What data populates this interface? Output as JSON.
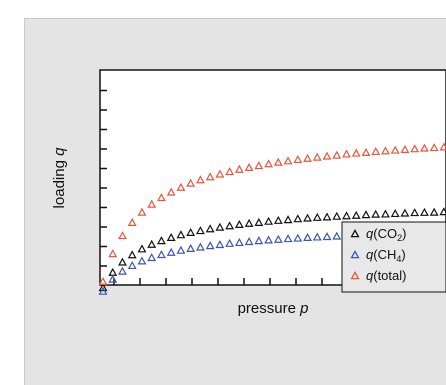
{
  "chart_data": {
    "type": "scatter",
    "xlabel": {
      "word": "pressure",
      "symbol": "p"
    },
    "ylabel": {
      "word": "loading",
      "symbol": "q"
    },
    "x": [
      0,
      0.02,
      0.04,
      0.06,
      0.08,
      0.1,
      0.12,
      0.14,
      0.16,
      0.18,
      0.2,
      0.22,
      0.24,
      0.26,
      0.28,
      0.3,
      0.32,
      0.34,
      0.36,
      0.38,
      0.4,
      0.42,
      0.44,
      0.46,
      0.48,
      0.5,
      0.52,
      0.54,
      0.56,
      0.58,
      0.6,
      0.62,
      0.64,
      0.66,
      0.68,
      0.7,
      0.72,
      0.74,
      0.76,
      0.78,
      0.8,
      0.82,
      0.84,
      0.86,
      0.88,
      0.9,
      0.92,
      0.94,
      0.96,
      0.98,
      1
    ],
    "xlim": [
      0,
      1
    ],
    "ylim": [
      0,
      1
    ],
    "grid": false,
    "legend_position": "lower-right",
    "series": [
      {
        "name": "q(CO2)",
        "label_main": "q(CO",
        "label_sub": "2",
        "label_end": ")",
        "color": "#111111",
        "values": [
          0.044,
          0.111,
          0.156,
          0.188,
          0.214,
          0.234,
          0.25,
          0.264,
          0.276,
          0.286,
          0.294,
          0.302,
          0.309,
          0.315,
          0.321,
          0.326,
          0.33,
          0.335,
          0.339,
          0.342,
          0.346,
          0.349,
          0.352,
          0.354,
          0.357,
          0.359,
          0.361,
          0.364,
          0.366,
          0.367,
          0.369,
          0.371,
          0.373,
          0.374,
          0.375,
          0.377,
          0.378,
          0.379,
          0.381,
          0.382,
          0.383,
          0.384,
          0.385,
          0.386,
          0.387,
          0.388,
          0.389,
          0.39,
          0.39,
          0.391,
          0.392
        ]
      },
      {
        "name": "q(CH4)",
        "label_main": "q(CH",
        "label_sub": "4",
        "label_end": ")",
        "color": "#3a55b8",
        "values": [
          0.028,
          0.081,
          0.116,
          0.141,
          0.161,
          0.176,
          0.189,
          0.199,
          0.208,
          0.216,
          0.222,
          0.228,
          0.233,
          0.238,
          0.242,
          0.246,
          0.25,
          0.253,
          0.256,
          0.259,
          0.261,
          0.264,
          0.266,
          0.268,
          0.27,
          0.272,
          0.273,
          0.275,
          0.277,
          0.278,
          0.279,
          0.281,
          0.282,
          0.283,
          0.284,
          0.285,
          0.286,
          0.287,
          0.288,
          0.289,
          0.29,
          0.291,
          0.291,
          0.292,
          0.293,
          0.294,
          0.294,
          0.295,
          0.296,
          0.296,
          0.297
        ]
      },
      {
        "name": "q(total)",
        "label_main": "q(total)",
        "label_sub": "",
        "label_end": "",
        "color": "#e8553a",
        "values": [
          0.071,
          0.193,
          0.272,
          0.33,
          0.375,
          0.41,
          0.439,
          0.463,
          0.484,
          0.502,
          0.517,
          0.53,
          0.542,
          0.553,
          0.563,
          0.571,
          0.579,
          0.587,
          0.594,
          0.6,
          0.606,
          0.611,
          0.616,
          0.621,
          0.625,
          0.63,
          0.634,
          0.637,
          0.641,
          0.644,
          0.647,
          0.65,
          0.653,
          0.656,
          0.658,
          0.661,
          0.663,
          0.666,
          0.668,
          0.67,
          0.672,
          0.674,
          0.676,
          0.678,
          0.68,
          0.681,
          0.683,
          0.685,
          0.686,
          0.688,
          0.689
        ]
      }
    ]
  }
}
